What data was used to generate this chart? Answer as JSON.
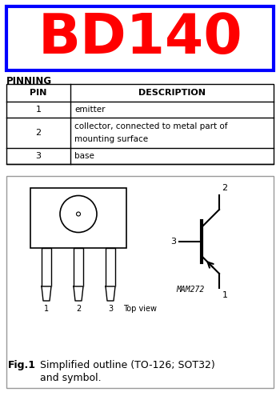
{
  "title": "BD140",
  "title_color": "#ff0000",
  "title_box_color": "#0000ff",
  "bg_color": "#ffffff",
  "pinning_label": "PINNING",
  "table_headers": [
    "PIN",
    "DESCRIPTION"
  ],
  "table_rows": [
    [
      "1",
      "emitter"
    ],
    [
      "2",
      "collector, connected to metal part of\nmounting surface"
    ],
    [
      "3",
      "base"
    ]
  ],
  "fig_label": "Fig.1",
  "fig_caption": "Simplified outline (TO-126; SOT32)\nand symbol.",
  "topview_label": "Top view",
  "mam_label": "MAM272"
}
